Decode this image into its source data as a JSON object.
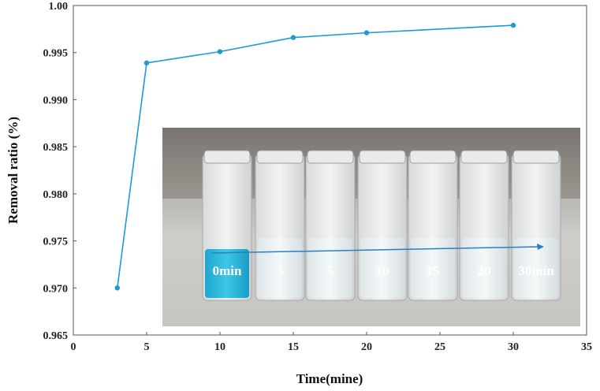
{
  "chart_data": {
    "type": "line",
    "xlabel": "Time(mine)",
    "ylabel": "Removal ratio (%)",
    "xlim": [
      0,
      35
    ],
    "ylim": [
      0.965,
      1.0
    ],
    "xticks": [
      "0",
      "5",
      "10",
      "15",
      "20",
      "25",
      "30",
      "35"
    ],
    "yticks": [
      "0.965",
      "0.970",
      "0.975",
      "0.980",
      "0.985",
      "0.990",
      "0.995",
      "1.00"
    ],
    "series": [
      {
        "x": [
          3,
          5,
          10,
          15,
          20,
          30
        ],
        "y": [
          0.97,
          0.9939,
          0.9951,
          0.9966,
          0.9971,
          0.9979
        ],
        "color": "#1b9ad6"
      }
    ],
    "grid": false,
    "inset_photo": {
      "labels": [
        "0min",
        "3",
        "5",
        "10",
        "15",
        "20",
        "30min"
      ],
      "solution_color": "#27b8da"
    }
  }
}
